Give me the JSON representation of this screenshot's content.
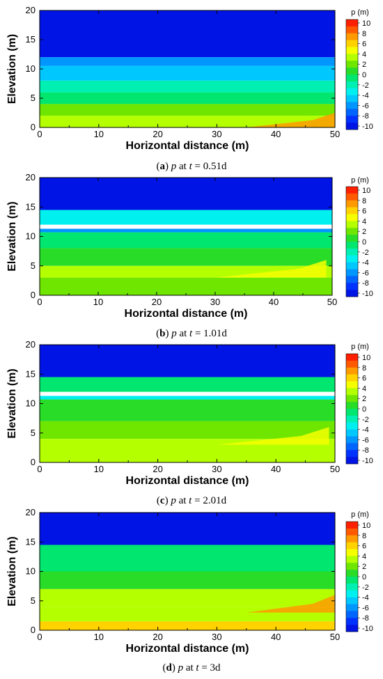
{
  "figure": {
    "colorbar_title": "p (m)",
    "colorbar_ticks": [
      "10",
      "8",
      "6",
      "4",
      "2",
      "0",
      "-2",
      "-4",
      "-6",
      "-8",
      "-10"
    ],
    "colorbar_levels": [
      "#ff2000",
      "#ff5a00",
      "#ff9a00",
      "#ffd200",
      "#f6ff00",
      "#b4ff00",
      "#6ee600",
      "#28dc28",
      "#00e66e",
      "#00f0b4",
      "#00f0f0",
      "#00c8ff",
      "#0096ff",
      "#0064ff",
      "#0032ff",
      "#0014e6"
    ]
  },
  "chart_data": [
    {
      "type": "heatmap",
      "panel_label": "a",
      "caption_var": "p",
      "caption_at": "at",
      "caption_t": "t",
      "caption_eq": "=",
      "caption_time": "0.51d",
      "xlabel": "Horizontal distance (m)",
      "ylabel": "Elevation (m)",
      "xlim": [
        0,
        50
      ],
      "ylim": [
        0,
        20
      ],
      "xticks": [
        "0",
        "10",
        "20",
        "30",
        "40",
        "50"
      ],
      "yticks": [
        "0",
        "5",
        "10",
        "15",
        "20"
      ],
      "colorbar": {
        "title": "p (m)",
        "range": [
          -10,
          10
        ],
        "ticks": [
          10,
          8,
          6,
          4,
          2,
          0,
          -2,
          -4,
          -6,
          -8,
          -10
        ]
      },
      "bands": [
        {
          "from": 12,
          "to": 20,
          "p": -10
        },
        {
          "from": 10.5,
          "to": 12,
          "p": -6
        },
        {
          "from": 8,
          "to": 10.5,
          "p": -4
        },
        {
          "from": 6,
          "to": 8,
          "p": -2
        },
        {
          "from": 4,
          "to": 6,
          "p": 0
        },
        {
          "from": 2,
          "to": 4,
          "p": 2
        },
        {
          "from": 0,
          "to": 2,
          "p": 4
        }
      ],
      "features": [
        {
          "x0": 35,
          "x1": 50,
          "y0": 0,
          "y1": 2.5,
          "p": 8
        }
      ]
    },
    {
      "type": "heatmap",
      "panel_label": "b",
      "caption_var": "p",
      "caption_at": "at",
      "caption_t": "t",
      "caption_eq": "=",
      "caption_time": "1.01d",
      "xlabel": "Horizontal distance (m)",
      "ylabel": "Elevation (m)",
      "xlim": [
        0,
        50
      ],
      "ylim": [
        0,
        20
      ],
      "xticks": [
        "0",
        "10",
        "20",
        "30",
        "40",
        "50"
      ],
      "yticks": [
        "0",
        "5",
        "10",
        "15",
        "20"
      ],
      "colorbar": {
        "title": "p (m)",
        "range": [
          -10,
          10
        ],
        "ticks": [
          10,
          8,
          6,
          4,
          2,
          0,
          -2,
          -4,
          -6,
          -8,
          -10
        ]
      },
      "bands": [
        {
          "from": 14.5,
          "to": 20,
          "p": -10
        },
        {
          "from": 12,
          "to": 14.5,
          "p": -3
        },
        {
          "from": 10.7,
          "to": 11.3,
          "p": -6
        },
        {
          "from": 8,
          "to": 10.7,
          "p": 0
        },
        {
          "from": 5,
          "to": 8,
          "p": 1
        },
        {
          "from": 3,
          "to": 5,
          "p": 3
        },
        {
          "from": 0,
          "to": 3,
          "p": 2
        }
      ],
      "features": [
        {
          "x0": 30,
          "x1": 49,
          "y0": 3,
          "y1": 6,
          "p": 5
        }
      ]
    },
    {
      "type": "heatmap",
      "panel_label": "c",
      "caption_var": "p",
      "caption_at": "at",
      "caption_t": "t",
      "caption_eq": "=",
      "caption_time": "2.01d",
      "xlabel": "Horizontal distance (m)",
      "ylabel": "Elevation (m)",
      "xlim": [
        0,
        50
      ],
      "ylim": [
        0,
        20
      ],
      "xticks": [
        "0",
        "10",
        "20",
        "30",
        "40",
        "50"
      ],
      "yticks": [
        "0",
        "5",
        "10",
        "15",
        "20"
      ],
      "colorbar": {
        "title": "p (m)",
        "range": [
          -10,
          10
        ],
        "ticks": [
          10,
          8,
          6,
          4,
          2,
          0,
          -2,
          -4,
          -6,
          -8,
          -10
        ]
      },
      "bands": [
        {
          "from": 14.5,
          "to": 20,
          "p": -10
        },
        {
          "from": 12,
          "to": 14.5,
          "p": -1
        },
        {
          "from": 10.7,
          "to": 11.3,
          "p": -3
        },
        {
          "from": 7,
          "to": 10.7,
          "p": 1
        },
        {
          "from": 4,
          "to": 7,
          "p": 2
        },
        {
          "from": 0,
          "to": 4,
          "p": 4
        }
      ],
      "features": [
        {
          "x0": 30,
          "x1": 49,
          "y0": 3,
          "y1": 6,
          "p": 5
        }
      ]
    },
    {
      "type": "heatmap",
      "panel_label": "d",
      "caption_var": "p",
      "caption_at": "at",
      "caption_t": "t",
      "caption_eq": "=",
      "caption_time": "3d",
      "xlabel": "Horizontal distance (m)",
      "ylabel": "Elevation (m)",
      "xlim": [
        0,
        50
      ],
      "ylim": [
        0,
        20
      ],
      "xticks": [
        "0",
        "10",
        "20",
        "30",
        "40",
        "50"
      ],
      "yticks": [
        "0",
        "5",
        "10",
        "15",
        "20"
      ],
      "colorbar": {
        "title": "p (m)",
        "range": [
          -10,
          10
        ],
        "ticks": [
          10,
          8,
          6,
          4,
          2,
          0,
          -2,
          -4,
          -6,
          -8,
          -10
        ]
      },
      "bands": [
        {
          "from": 14.5,
          "to": 20,
          "p": -10
        },
        {
          "from": 10,
          "to": 14.5,
          "p": 0
        },
        {
          "from": 7,
          "to": 10,
          "p": 1
        },
        {
          "from": 4,
          "to": 7,
          "p": 3
        },
        {
          "from": 1.5,
          "to": 4,
          "p": 4
        },
        {
          "from": 0,
          "to": 1.5,
          "p": 6
        }
      ],
      "features": [
        {
          "x0": 35,
          "x1": 50,
          "y0": 3,
          "y1": 6,
          "p": 7
        }
      ]
    }
  ]
}
